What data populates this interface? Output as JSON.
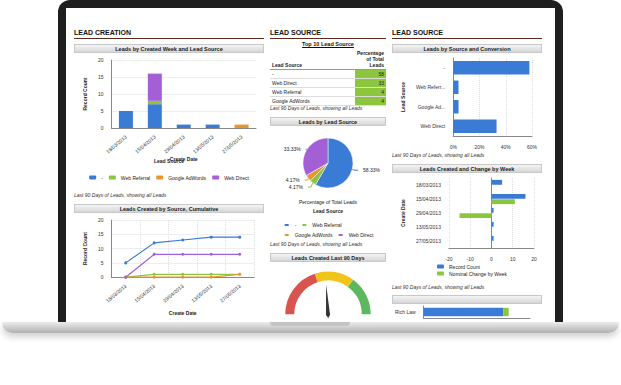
{
  "headers": [
    "LEAD CREATION",
    "LEAD SOURCE",
    "LEAD SOURCE"
  ],
  "table": {
    "title": "Top 10 Lead Source",
    "columns": [
      "Lead Source",
      "Percentage of Total Leads"
    ],
    "rows": [
      [
        "-",
        58
      ],
      [
        "Web Direct",
        33
      ],
      [
        "Web Referral",
        4
      ],
      [
        "Google AdWords",
        4
      ]
    ],
    "annotation": "Last 90 Days of Leads, showing all Leads"
  },
  "chart_data": [
    {
      "type": "bar",
      "stacked": true,
      "title": "Leads by Created Week and Lead Source",
      "categories": [
        "18/03/2013",
        "15/04/2013",
        "29/04/2013",
        "13/05/2013",
        "27/05/2013"
      ],
      "series": [
        {
          "name": "-",
          "color": "#3a7bd5",
          "values": [
            5,
            7,
            1,
            1,
            0
          ]
        },
        {
          "name": "Web Referral",
          "color": "#8cc63f",
          "values": [
            0,
            1,
            0,
            0,
            0
          ]
        },
        {
          "name": "Google AdWords",
          "color": "#e8972f",
          "values": [
            0,
            0,
            0,
            0,
            1
          ]
        },
        {
          "name": "Web Direct",
          "color": "#a25fd6",
          "values": [
            0,
            8,
            0,
            0,
            0
          ]
        }
      ],
      "ylim": [
        0,
        20
      ],
      "yticks": [
        0,
        5,
        10,
        15,
        20
      ],
      "grid": true,
      "xlabel": "Create Date",
      "ylabel": "Record Count",
      "legend_title": "Lead Source",
      "legend": "bottom",
      "annotation": "Last 90 Days of Leads, showing all Leads"
    },
    {
      "type": "line",
      "title": "Leads Created by Source, Cumulative",
      "categories": [
        "18/03/2013",
        "15/04/2013",
        "29/04/2013",
        "13/05/2013",
        "27/05/2013"
      ],
      "series": [
        {
          "color": "#3a7bd5",
          "values": [
            5,
            12,
            13,
            14,
            14
          ]
        },
        {
          "color": "#8cc63f",
          "values": [
            0,
            1,
            1,
            1,
            1
          ]
        },
        {
          "color": "#e8972f",
          "values": [
            0,
            0,
            0,
            0,
            1
          ]
        },
        {
          "color": "#a25fd6",
          "values": [
            0,
            8,
            8,
            8,
            8
          ]
        }
      ],
      "marker": "circle",
      "ylim": [
        0,
        20
      ],
      "yticks": [
        0,
        5,
        10,
        15,
        20
      ],
      "grid": true,
      "xlabel": "Create Date",
      "ylabel": "Record Count"
    },
    {
      "type": "pie",
      "title": "Leads by Lead Source",
      "subtitle": "Percentage of Total Leads",
      "categories": [
        "-",
        "Web Referral",
        "Google AdWords",
        "Web Direct"
      ],
      "values": [
        58.33,
        4.17,
        4.17,
        33.33
      ],
      "value_labels": [
        "58.33%",
        "4.17%",
        "4.17%",
        "33.33%"
      ],
      "colors": [
        "#3a7bd5",
        "#8cc63f",
        "#e8972f",
        "#a25fd6"
      ],
      "data_labels": true,
      "legend_title": "Lead Source",
      "legend": "bottom",
      "annotation": "Last 90 Days of Leads, showing all Leads"
    },
    {
      "type": "gauge",
      "title": "Leads Created Last 90 Days",
      "values": [
        24
      ],
      "ylim": [
        0,
        50
      ],
      "tick_labels": false
    },
    {
      "type": "bar",
      "orientation": "horizontal",
      "title": "Leads by Source and Conversion",
      "categories": [
        "-",
        "Web Referr...",
        "Google Ad...",
        "Web Direct"
      ],
      "values": [
        58,
        4,
        4,
        33
      ],
      "color": "#3a7bd5",
      "xlim": [
        0,
        60
      ],
      "xticks": [
        {
          "value": 0,
          "label": "0%"
        },
        {
          "value": 20,
          "label": "20%"
        },
        {
          "value": 40,
          "label": "40%"
        },
        {
          "value": 60,
          "label": "60%"
        }
      ],
      "grid": true,
      "ylabel": "Lead Source",
      "annotation": "Last 90 Days of Leads, showing all Leads"
    },
    {
      "type": "bar",
      "orientation": "horizontal",
      "title": "Leads Created and Change by Week",
      "categories": [
        "18/03/2013",
        "15/04/2013",
        "29/04/2013",
        "13/05/2013",
        "27/05/2013"
      ],
      "series": [
        {
          "name": "Record Count",
          "color": "#3a7bd5",
          "values": [
            5,
            16,
            1,
            1,
            1
          ]
        },
        {
          "name": "Nominal Change by Week",
          "color": "#8cc63f",
          "values": [
            null,
            11,
            -15,
            0,
            0
          ]
        }
      ],
      "xlim": [
        -20,
        20
      ],
      "xticks": [
        -20,
        -10,
        0,
        10,
        20
      ],
      "grid": true,
      "ylabel": "Create Date",
      "legend": "bottom",
      "annotation": "Last 90 Days of Leads, showing all Leads"
    },
    {
      "type": "bar",
      "orientation": "horizontal",
      "stacked": true,
      "categories": [
        "Rich Law"
      ],
      "series": [
        {
          "color": "#3a7bd5",
          "values": [
            15
          ]
        },
        {
          "color": "#8cc63f",
          "values": [
            1
          ]
        }
      ],
      "xlim": [
        0,
        20
      ],
      "tick_labels": "y"
    }
  ]
}
